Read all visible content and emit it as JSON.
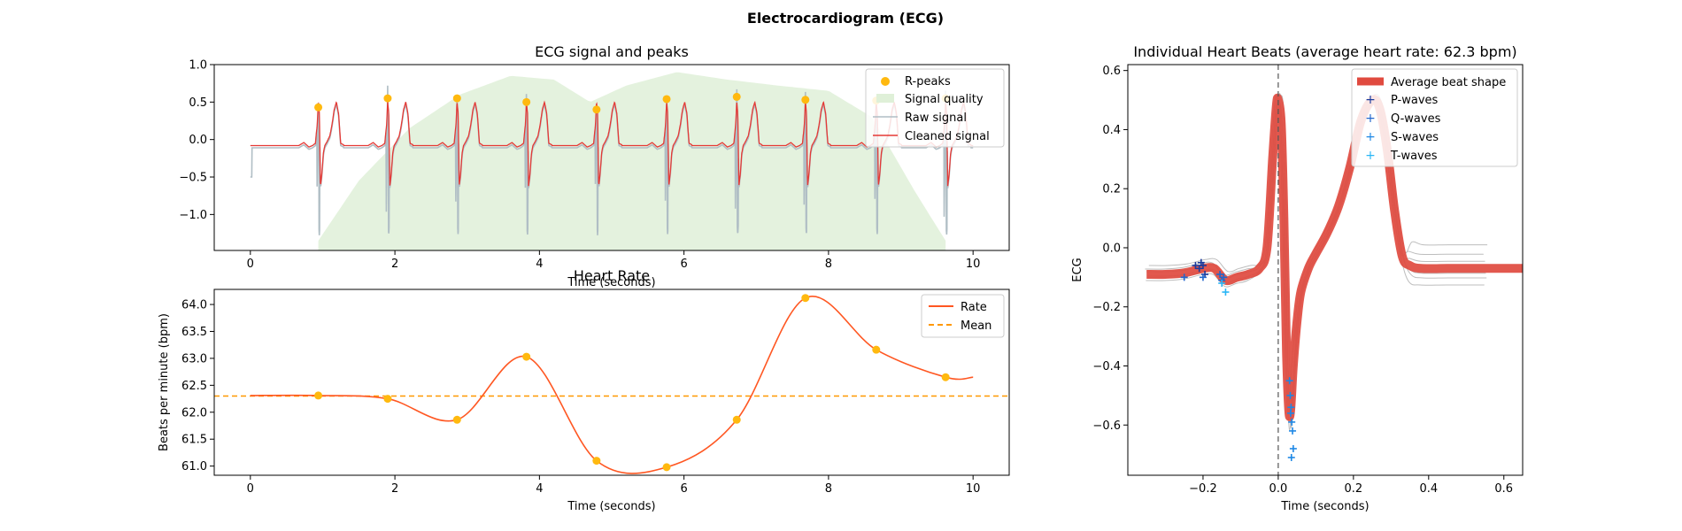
{
  "figure": {
    "title": "Electrocardiogram (ECG)"
  },
  "chart_data": [
    {
      "id": "ecg",
      "type": "line",
      "title": "ECG signal and peaks",
      "xlabel": "Time (seconds)",
      "ylabel": "",
      "xlim": [
        -0.5,
        10.5
      ],
      "ylim": [
        -1.48,
        1.0
      ],
      "xticks": [
        0,
        2,
        4,
        6,
        8,
        10
      ],
      "yticks": [
        -1.0,
        -0.5,
        0.0,
        0.5,
        1.0
      ],
      "ytick_labels": [
        "−1.0",
        "−0.5",
        "0.0",
        "0.5",
        "1.0"
      ],
      "grid": false,
      "legend_position": "top-right",
      "colors": {
        "r_peaks": "#FFB90F",
        "quality": "#DFF0D8",
        "raw": "#B0BEC5",
        "cleaned": "#E53935"
      },
      "r_peaks": {
        "name": "R-peaks",
        "x": [
          0.94,
          1.9,
          2.86,
          3.82,
          4.79,
          5.76,
          6.73,
          7.68,
          8.66,
          9.62
        ],
        "y": [
          0.43,
          0.55,
          0.55,
          0.5,
          0.4,
          0.54,
          0.57,
          0.53,
          0.52,
          0.55
        ]
      },
      "quality": {
        "name": "Signal quality",
        "x": [
          0.94,
          1.5,
          2.2,
          2.9,
          3.6,
          4.2,
          4.7,
          5.2,
          5.9,
          6.6,
          7.3,
          8.0,
          8.6,
          9.2,
          9.62
        ],
        "y": [
          -1.35,
          -0.55,
          0.15,
          0.6,
          0.85,
          0.8,
          0.5,
          0.72,
          0.9,
          0.8,
          0.72,
          0.65,
          0.3,
          -0.7,
          -1.35
        ]
      },
      "raw": {
        "name": "Raw signal"
      },
      "cleaned": {
        "name": "Cleaned signal"
      },
      "beat": {
        "t": [
          -0.35,
          -0.27,
          -0.2,
          -0.13,
          -0.08,
          -0.04,
          -0.015,
          0.0,
          0.015,
          0.03,
          0.05,
          0.07,
          0.09,
          0.12,
          0.16,
          0.19,
          0.22,
          0.25,
          0.28,
          0.31,
          0.35
        ],
        "v": [
          -0.08,
          -0.08,
          -0.04,
          -0.1,
          -0.08,
          -0.05,
          0.2,
          0.5,
          0.35,
          -0.62,
          -0.45,
          -0.18,
          -0.08,
          -0.03,
          0.05,
          0.2,
          0.4,
          0.5,
          0.35,
          -0.05,
          -0.07
        ]
      }
    },
    {
      "id": "hr",
      "type": "line",
      "title": "Heart Rate",
      "xlabel": "Time (seconds)",
      "ylabel": "Beats per minute (bpm)",
      "xlim": [
        -0.5,
        10.5
      ],
      "ylim": [
        60.83,
        64.28
      ],
      "xticks": [
        0,
        2,
        4,
        6,
        8,
        10
      ],
      "yticks": [
        61.0,
        61.5,
        62.0,
        62.5,
        63.0,
        63.5,
        64.0
      ],
      "grid": false,
      "legend_position": "top-right",
      "colors": {
        "rate": "#FF5722",
        "mean": "#FF9800",
        "points": "#FFB90F"
      },
      "rate": {
        "name": "Rate",
        "x": [
          0,
          0.94,
          1.9,
          2.86,
          3.82,
          4.79,
          5.76,
          6.73,
          7.68,
          8.66,
          9.62,
          10.0
        ],
        "y": [
          62.31,
          62.31,
          62.25,
          61.86,
          63.03,
          61.1,
          60.98,
          61.86,
          64.12,
          63.16,
          62.65,
          62.65
        ]
      },
      "points": {
        "x": [
          0.94,
          1.9,
          2.86,
          3.82,
          4.79,
          5.76,
          6.73,
          7.68,
          8.66,
          9.62
        ],
        "y": [
          62.31,
          62.25,
          61.86,
          63.03,
          61.1,
          60.98,
          61.86,
          64.12,
          63.16,
          62.65
        ]
      },
      "mean": {
        "name": "Mean",
        "value": 62.3
      }
    },
    {
      "id": "beats",
      "type": "line",
      "title": "Individual Heart Beats (average heart rate: 62.3 bpm)",
      "xlabel": "Time (seconds)",
      "ylabel": "ECG",
      "xlim": [
        -0.4,
        0.65
      ],
      "ylim": [
        -0.77,
        0.62
      ],
      "xticks": [
        -0.2,
        0.0,
        0.2,
        0.4,
        0.6
      ],
      "xtick_labels": [
        "−0.2",
        "0.0",
        "0.2",
        "0.4",
        "0.6"
      ],
      "yticks": [
        -0.6,
        -0.4,
        -0.2,
        0.0,
        0.2,
        0.4,
        0.6
      ],
      "ytick_labels": [
        "−0.6",
        "−0.4",
        "−0.2",
        "0.0",
        "0.2",
        "0.4",
        "0.6"
      ],
      "grid": false,
      "legend_position": "top-right",
      "colors": {
        "avg": "#E04A3F",
        "p": "#1A3A9C",
        "q": "#2266CC",
        "s": "#1E88E5",
        "t": "#29B6F6",
        "individual": "#BDBDBD"
      },
      "average_beat": {
        "name": "Average beat shape",
        "t": [
          -0.35,
          -0.3,
          -0.25,
          -0.2,
          -0.17,
          -0.14,
          -0.11,
          -0.08,
          -0.05,
          -0.03,
          -0.015,
          -0.005,
          0.0,
          0.008,
          0.015,
          0.022,
          0.028,
          0.033,
          0.04,
          0.05,
          0.06,
          0.08,
          0.1,
          0.13,
          0.16,
          0.19,
          0.22,
          0.25,
          0.27,
          0.29,
          0.31,
          0.33,
          0.35,
          0.38,
          0.45,
          0.55,
          0.65
        ],
        "v": [
          -0.09,
          -0.09,
          -0.085,
          -0.07,
          -0.07,
          -0.11,
          -0.1,
          -0.09,
          -0.07,
          0.0,
          0.3,
          0.48,
          0.5,
          0.42,
          0.1,
          -0.35,
          -0.55,
          -0.55,
          -0.4,
          -0.25,
          -0.15,
          -0.07,
          -0.02,
          0.05,
          0.14,
          0.27,
          0.43,
          0.5,
          0.47,
          0.33,
          0.12,
          -0.03,
          -0.06,
          -0.07,
          -0.07,
          -0.07,
          -0.07
        ]
      },
      "p_waves": {
        "name": "P-waves",
        "x": [
          -0.22,
          -0.21,
          -0.205,
          -0.2,
          -0.195
        ],
        "y": [
          -0.06,
          -0.07,
          -0.05,
          -0.06,
          -0.09
        ]
      },
      "q_waves": {
        "name": "Q-waves",
        "x": [
          -0.25,
          -0.2,
          -0.155,
          -0.15,
          -0.145
        ],
        "y": [
          -0.1,
          -0.1,
          -0.09,
          -0.11,
          -0.1
        ]
      },
      "s_waves": {
        "name": "S-waves",
        "x": [
          0.03,
          0.032,
          0.034,
          0.036,
          0.038,
          0.04,
          0.035,
          0.033
        ],
        "y": [
          -0.45,
          -0.5,
          -0.54,
          -0.59,
          -0.62,
          -0.68,
          -0.71,
          -0.56
        ]
      },
      "t_waves": {
        "name": "T-waves",
        "x": [
          -0.14,
          -0.15
        ],
        "y": [
          -0.15,
          -0.12
        ]
      },
      "rpeak_line": 0.0
    }
  ]
}
